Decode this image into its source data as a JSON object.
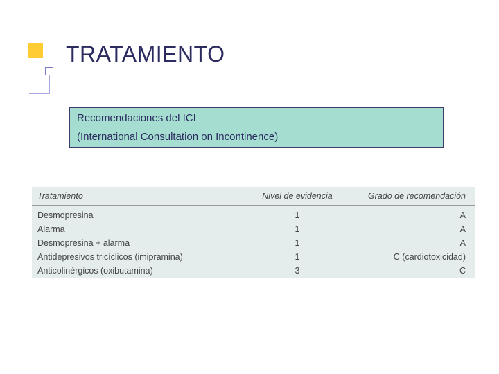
{
  "slide": {
    "title": "TRATAMIENTO",
    "banner": {
      "line1": "Recomendaciones del ICI",
      "line2": "(International Consultation on Incontinence)",
      "background_color": "#a5ded1",
      "border_color": "#3a3a6b",
      "text_color": "#2b2b60"
    },
    "decoration": {
      "yellow": "#ffcc33",
      "line_color": "#a8a8e0",
      "square_border": "#7c7cc4"
    }
  },
  "table": {
    "background_color": "#e4edec",
    "header_rule_color": "#9a9a9a",
    "columns": [
      "Tratamiento",
      "Nivel de evidencia",
      "Grado de recomendación"
    ],
    "rows": [
      {
        "c1": "Desmopresina",
        "c2": "1",
        "c3": "A"
      },
      {
        "c1": "Alarma",
        "c2": "1",
        "c3": "A"
      },
      {
        "c1": "Desmopresina + alarma",
        "c2": "1",
        "c3": "A"
      },
      {
        "c1": "Antidepresivos tricíclicos (imipramina)",
        "c2": "1",
        "c3": "C (cardiotoxicidad)"
      },
      {
        "c1": "Anticolinérgicos (oxibutamina)",
        "c2": "3",
        "c3": "C"
      }
    ]
  }
}
